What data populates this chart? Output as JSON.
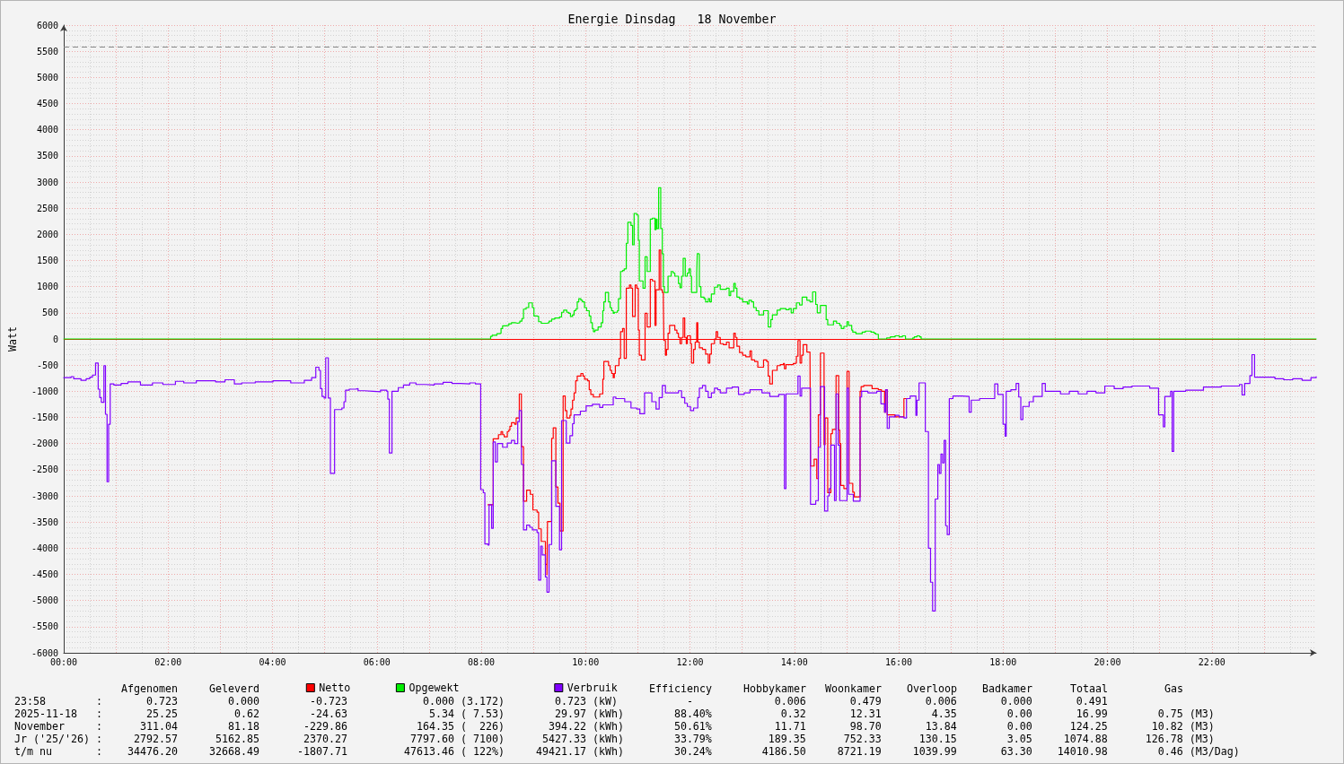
{
  "chart_data": {
    "type": "step",
    "title": "Energie Dinsdag   18 November",
    "ylabel": "Watt",
    "xlim": [
      0,
      24
    ],
    "xticks": [
      {
        "value": 0,
        "label": "00:00"
      },
      {
        "value": 1,
        "label": null
      },
      {
        "value": 2,
        "label": "02:00"
      },
      {
        "value": 3,
        "label": null
      },
      {
        "value": 4,
        "label": "04:00"
      },
      {
        "value": 5,
        "label": null
      },
      {
        "value": 6,
        "label": "06:00"
      },
      {
        "value": 7,
        "label": null
      },
      {
        "value": 8,
        "label": "08:00"
      },
      {
        "value": 9,
        "label": null
      },
      {
        "value": 10,
        "label": "10:00"
      },
      {
        "value": 11,
        "label": null
      },
      {
        "value": 12,
        "label": "12:00"
      },
      {
        "value": 13,
        "label": null
      },
      {
        "value": 14,
        "label": "14:00"
      },
      {
        "value": 15,
        "label": null
      },
      {
        "value": 16,
        "label": "16:00"
      },
      {
        "value": 17,
        "label": null
      },
      {
        "value": 18,
        "label": "18:00"
      },
      {
        "value": 19,
        "label": null
      },
      {
        "value": 20,
        "label": "20:00"
      },
      {
        "value": 21,
        "label": null
      },
      {
        "value": 22,
        "label": "22:00"
      },
      {
        "value": 23,
        "label": null
      }
    ],
    "ylim": [
      -6000,
      6000
    ],
    "yticks": [
      -6000,
      -5500,
      -5000,
      -4500,
      -4000,
      -3500,
      -3000,
      -2500,
      -2000,
      -1500,
      -1000,
      -500,
      0,
      500,
      1000,
      1500,
      2000,
      2500,
      3000,
      3500,
      4000,
      4500,
      5000,
      5500,
      6000
    ],
    "grid": true,
    "legend": "bottom",
    "marker": "none",
    "series": [
      {
        "name": "Netto",
        "color": "#ff0000",
        "x": [
          8.13,
          8.23,
          8.33,
          8.38,
          8.41,
          8.44,
          8.5,
          8.53,
          8.55,
          8.58,
          8.64,
          8.67,
          8.73,
          8.77,
          8.81,
          8.87,
          8.94,
          8.99,
          9.07,
          9.1,
          9.15,
          9.23,
          9.26,
          9.27,
          9.35,
          9.38,
          9.43,
          9.47,
          9.51,
          9.57,
          9.61,
          9.64,
          9.7,
          9.72,
          9.75,
          9.78,
          9.81,
          9.84,
          9.91,
          9.95,
          9.98,
          10.04,
          10.07,
          10.1,
          10.15,
          10.27,
          10.33,
          10.35,
          10.44,
          10.47,
          10.5,
          10.53,
          10.55,
          10.57,
          10.64,
          10.67,
          10.71,
          10.74,
          10.78,
          10.84,
          10.87,
          10.9,
          10.95,
          10.98,
          11.01,
          11.03,
          11.07,
          11.14,
          11.18,
          11.24,
          11.28,
          11.33,
          11.35,
          11.41,
          11.44,
          11.47,
          11.49,
          11.5,
          11.53,
          11.55,
          11.58,
          11.61,
          11.71,
          11.75,
          11.78,
          11.81,
          11.84,
          11.87,
          11.9,
          11.93,
          11.95,
          12.01,
          12.03,
          12.07,
          12.1,
          12.13,
          12.15,
          12.18,
          12.24,
          12.3,
          12.35,
          12.38,
          12.41,
          12.47,
          12.5,
          12.53,
          12.58,
          12.64,
          12.7,
          12.75,
          12.84,
          12.87,
          12.9,
          12.95,
          13.01,
          13.07,
          13.15,
          13.18,
          13.24,
          13.3,
          13.41,
          13.47,
          13.5,
          13.53,
          13.58,
          13.67,
          13.73,
          13.79,
          13.81,
          13.84,
          13.98,
          14.01,
          14.04,
          14.07,
          14.11,
          14.14,
          14.17,
          14.24,
          14.3,
          14.31,
          14.38,
          14.43,
          14.46,
          14.5,
          14.57,
          14.59,
          14.64,
          14.7,
          14.73,
          14.8,
          14.85,
          14.87,
          14.89,
          14.95,
          15.01,
          15.05,
          15.12,
          15.15,
          15.26,
          15.28,
          15.33,
          15.49,
          15.61,
          15.67,
          15.73,
          15.75,
          15.78,
          15.93,
          16.1,
          16.15
        ],
        "values": [
          -3170,
          -1910,
          -1830,
          -1770,
          -1830,
          -1870,
          -1770,
          -1740,
          -1670,
          -1600,
          -1630,
          -1510,
          -1050,
          -2060,
          -3100,
          -2890,
          -2970,
          -3270,
          -3310,
          -3630,
          -3870,
          -4310,
          -4510,
          -3490,
          -1900,
          -1700,
          -2830,
          -3140,
          -3670,
          -1090,
          -1370,
          -1510,
          -1460,
          -1340,
          -1170,
          -1030,
          -800,
          -710,
          -660,
          -710,
          -770,
          -800,
          -970,
          -1060,
          -1110,
          -1050,
          -770,
          -430,
          -510,
          -600,
          -660,
          -740,
          -660,
          -510,
          -370,
          140,
          200,
          -370,
          970,
          1030,
          970,
          430,
          1030,
          970,
          170,
          -310,
          -400,
          490,
          230,
          1140,
          1110,
          260,
          940,
          1700,
          940,
          890,
          740,
          -30,
          -310,
          -200,
          110,
          260,
          170,
          110,
          30,
          -90,
          30,
          400,
          30,
          -90,
          60,
          -90,
          -460,
          -200,
          -60,
          310,
          -60,
          -170,
          -200,
          -290,
          -460,
          -290,
          -90,
          0,
          140,
          30,
          -90,
          -110,
          -60,
          -170,
          110,
          30,
          -140,
          -260,
          -310,
          -340,
          -230,
          -400,
          -430,
          -540,
          -400,
          -430,
          -710,
          -860,
          -600,
          -510,
          -490,
          -470,
          -570,
          -490,
          -470,
          -460,
          -330,
          -30,
          -460,
          -310,
          -110,
          -250,
          -270,
          -2430,
          -2300,
          -2670,
          -1450,
          -270,
          -2020,
          -1510,
          -2940,
          -1810,
          -1730,
          -700,
          -1740,
          -2000,
          -2800,
          -2860,
          -620,
          -2760,
          -2930,
          -3020,
          -1000,
          -910,
          -890,
          -950,
          -970,
          -1000,
          -1400,
          -970,
          -1450,
          -1490,
          -1140,
          -1140
        ]
      },
      {
        "name": "Opgewekt",
        "color": "#00ee00",
        "x": [
          0,
          8.18,
          8.21,
          8.3,
          8.35,
          8.38,
          8.41,
          8.47,
          8.53,
          8.58,
          8.65,
          8.7,
          8.74,
          8.78,
          8.81,
          8.86,
          8.91,
          8.98,
          9.01,
          9.07,
          9.1,
          9.15,
          9.26,
          9.3,
          9.35,
          9.41,
          9.5,
          9.54,
          9.58,
          9.64,
          9.68,
          9.71,
          9.75,
          9.78,
          9.81,
          9.84,
          9.87,
          9.91,
          9.94,
          9.98,
          10.02,
          10.07,
          10.1,
          10.13,
          10.15,
          10.18,
          10.24,
          10.3,
          10.33,
          10.35,
          10.38,
          10.44,
          10.47,
          10.5,
          10.53,
          10.55,
          10.61,
          10.63,
          10.67,
          10.71,
          10.74,
          10.78,
          10.81,
          10.87,
          10.9,
          10.93,
          10.98,
          11.01,
          11.03,
          11.1,
          11.14,
          11.18,
          11.24,
          11.28,
          11.33,
          11.35,
          11.37,
          11.4,
          11.44,
          11.47,
          11.49,
          11.51,
          11.58,
          11.64,
          11.68,
          11.71,
          11.78,
          11.81,
          11.84,
          11.87,
          11.91,
          11.95,
          11.98,
          12.01,
          12.03,
          12.13,
          12.14,
          12.17,
          12.18,
          12.21,
          12.27,
          12.3,
          12.35,
          12.38,
          12.41,
          12.47,
          12.53,
          12.58,
          12.7,
          12.75,
          12.78,
          12.84,
          12.87,
          12.9,
          12.95,
          13.01,
          13.1,
          13.13,
          13.18,
          13.22,
          13.27,
          13.32,
          13.41,
          13.5,
          13.55,
          13.58,
          13.67,
          13.73,
          13.84,
          13.9,
          13.94,
          13.98,
          14.04,
          14.1,
          14.15,
          14.24,
          14.3,
          14.35,
          14.41,
          14.44,
          14.5,
          14.61,
          14.64,
          14.75,
          14.81,
          14.87,
          14.9,
          14.95,
          15.01,
          15.04,
          15.1,
          15.12,
          15.18,
          15.3,
          15.36,
          15.47,
          15.53,
          15.56,
          15.61,
          15.77,
          15.84,
          15.93,
          16.01,
          16.07,
          16.13,
          16.27,
          16.3,
          16.35,
          16.4,
          16.43,
          24
        ],
        "values": [
          0,
          50,
          70,
          100,
          110,
          200,
          250,
          260,
          290,
          310,
          300,
          310,
          340,
          390,
          570,
          600,
          690,
          600,
          440,
          430,
          330,
          300,
          310,
          340,
          380,
          400,
          420,
          510,
          550,
          510,
          490,
          430,
          460,
          540,
          570,
          710,
          770,
          740,
          710,
          600,
          540,
          440,
          310,
          200,
          140,
          170,
          230,
          310,
          540,
          710,
          890,
          710,
          600,
          540,
          490,
          510,
          540,
          770,
          1290,
          1310,
          1340,
          1830,
          2230,
          2170,
          1800,
          2400,
          2370,
          1890,
          1110,
          970,
          1570,
          1290,
          2290,
          2310,
          2090,
          2290,
          2110,
          2890,
          2110,
          1630,
          1000,
          890,
          1200,
          1290,
          1260,
          1200,
          1060,
          980,
          1200,
          1540,
          1200,
          1260,
          1340,
          1200,
          890,
          1260,
          1630,
          1620,
          1000,
          800,
          770,
          710,
          770,
          710,
          860,
          990,
          1030,
          950,
          970,
          830,
          910,
          1060,
          970,
          800,
          770,
          710,
          670,
          740,
          710,
          600,
          540,
          460,
          540,
          230,
          370,
          460,
          550,
          580,
          560,
          580,
          500,
          580,
          690,
          650,
          800,
          740,
          710,
          900,
          660,
          500,
          640,
          370,
          270,
          340,
          300,
          260,
          200,
          240,
          330,
          260,
          170,
          130,
          100,
          130,
          150,
          130,
          110,
          90,
          0,
          20,
          40,
          60,
          40,
          60,
          0,
          20,
          40,
          60,
          40,
          0,
          0
        ]
      },
      {
        "name": "Verbruik",
        "color": "#8000ff",
        "x": [
          0,
          0.14,
          0.19,
          0.33,
          0.43,
          0.5,
          0.55,
          0.61,
          0.66,
          0.69,
          0.72,
          0.77,
          0.8,
          0.83,
          0.86,
          0.89,
          0.96,
          1.1,
          1.23,
          1.47,
          1.7,
          1.9,
          2.14,
          2.3,
          2.54,
          2.91,
          3.09,
          3.27,
          3.41,
          3.67,
          4.01,
          4.35,
          4.61,
          4.75,
          4.83,
          4.89,
          4.92,
          4.95,
          4.99,
          5.02,
          5.07,
          5.11,
          5.19,
          5.33,
          5.37,
          5.4,
          5.47,
          5.59,
          5.64,
          5.76,
          5.93,
          6.07,
          6.19,
          6.21,
          6.24,
          6.29,
          6.41,
          6.51,
          6.63,
          6.75,
          6.93,
          7.1,
          7.27,
          7.44,
          7.61,
          7.78,
          7.89,
          7.99,
          8.04,
          8.07,
          8.13,
          8.15,
          8.2,
          8.23,
          8.27,
          8.31,
          8.41,
          8.5,
          8.58,
          8.64,
          8.7,
          8.73,
          8.77,
          8.81,
          8.87,
          8.93,
          8.98,
          9.07,
          9.1,
          9.14,
          9.17,
          9.23,
          9.26,
          9.3,
          9.35,
          9.43,
          9.5,
          9.54,
          9.63,
          9.7,
          9.75,
          9.78,
          9.9,
          10.01,
          10.13,
          10.27,
          10.33,
          10.53,
          10.58,
          10.75,
          10.87,
          10.98,
          11.04,
          11.13,
          11.27,
          11.35,
          11.41,
          11.47,
          11.53,
          11.78,
          11.84,
          11.9,
          11.95,
          12.01,
          12.07,
          12.15,
          12.18,
          12.24,
          12.3,
          12.35,
          12.41,
          12.47,
          12.53,
          12.58,
          12.7,
          12.81,
          12.93,
          13.04,
          13.15,
          13.27,
          13.38,
          13.53,
          13.7,
          13.81,
          13.84,
          14.07,
          14.11,
          14.14,
          14.31,
          14.41,
          14.46,
          14.5,
          14.58,
          14.64,
          14.67,
          14.7,
          14.77,
          14.8,
          14.84,
          14.87,
          15.01,
          15.04,
          15.13,
          15.26,
          15.29,
          15.41,
          15.58,
          15.66,
          15.73,
          15.75,
          15.78,
          15.82,
          15.93,
          16.01,
          16.1,
          16.15,
          16.22,
          16.33,
          16.35,
          16.39,
          16.51,
          16.57,
          16.61,
          16.65,
          16.7,
          16.75,
          16.78,
          16.81,
          16.84,
          16.87,
          16.9,
          16.93,
          16.97,
          17.04,
          17.21,
          17.35,
          17.39,
          17.55,
          17.84,
          17.9,
          18,
          18.04,
          18.06,
          18.15,
          18.25,
          18.3,
          18.34,
          18.38,
          18.5,
          18.58,
          18.75,
          18.81,
          19.01,
          19.1,
          19.27,
          19.44,
          19.61,
          19.78,
          19.95,
          20.13,
          20.3,
          20.47,
          20.81,
          20.98,
          21.07,
          21.1,
          21.21,
          21.24,
          21.27,
          21.5,
          21.84,
          22.18,
          22.53,
          22.58,
          22.63,
          22.73,
          22.77,
          22.82,
          23.04,
          23.21,
          23.38,
          23.55,
          23.73,
          23.9,
          24
        ],
        "values": [
          -740,
          -720,
          -760,
          -790,
          -760,
          -730,
          -690,
          -460,
          -960,
          -1120,
          -1210,
          -510,
          -1440,
          -2730,
          -1630,
          -860,
          -880,
          -850,
          -820,
          -880,
          -840,
          -870,
          -810,
          -840,
          -800,
          -820,
          -780,
          -860,
          -840,
          -820,
          -800,
          -840,
          -790,
          -740,
          -540,
          -600,
          -950,
          -1100,
          -1130,
          -360,
          -1130,
          -2570,
          -1350,
          -1320,
          -1200,
          -980,
          -960,
          -950,
          -990,
          -1000,
          -1010,
          -980,
          -1000,
          -1150,
          -2180,
          -1000,
          -930,
          -880,
          -840,
          -870,
          -880,
          -860,
          -830,
          -850,
          -860,
          -840,
          -860,
          -2880,
          -2940,
          -3920,
          -3940,
          -3170,
          -3620,
          -1970,
          -2350,
          -2000,
          -2070,
          -1990,
          -1940,
          -2000,
          -1580,
          -1370,
          -2400,
          -3650,
          -3560,
          -3600,
          -3650,
          -3700,
          -4610,
          -3960,
          -4130,
          -4550,
          -4840,
          -3930,
          -2330,
          -3200,
          -4030,
          -1560,
          -1990,
          -1850,
          -1620,
          -1450,
          -1380,
          -1280,
          -1250,
          -1310,
          -1260,
          -1110,
          -1140,
          -1200,
          -1320,
          -1340,
          -1430,
          -1030,
          -1200,
          -1340,
          -1120,
          -890,
          -1030,
          -990,
          -1120,
          -1230,
          -1290,
          -1370,
          -1320,
          -1120,
          -940,
          -890,
          -1000,
          -1120,
          -1030,
          -940,
          -970,
          -1030,
          -940,
          -920,
          -1060,
          -1030,
          -970,
          -970,
          -1030,
          -1100,
          -1060,
          -2860,
          -1050,
          -710,
          -1090,
          -940,
          -3160,
          -3090,
          -2070,
          -910,
          -3290,
          -3000,
          -2860,
          -2030,
          -3090,
          -1050,
          -2030,
          -3090,
          -940,
          -2970,
          -3100,
          -1110,
          -1000,
          -1030,
          -1000,
          -1240,
          -1400,
          -970,
          -1710,
          -1490,
          -1460,
          -1490,
          -1510,
          -1140,
          -1090,
          -1460,
          -1170,
          -840,
          -1770,
          -4000,
          -4650,
          -5200,
          -3060,
          -2400,
          -2570,
          -2200,
          -2370,
          -1940,
          -3570,
          -3740,
          -1140,
          -1090,
          -1100,
          -1400,
          -1170,
          -1140,
          -860,
          -1060,
          -1630,
          -1860,
          -1000,
          -970,
          -850,
          -1110,
          -1540,
          -1290,
          -1200,
          -1100,
          -850,
          -1000,
          -1000,
          -1050,
          -1000,
          -1050,
          -1000,
          -1030,
          -900,
          -950,
          -920,
          -900,
          -940,
          -1450,
          -1680,
          -1100,
          -1000,
          -2150,
          -1000,
          -980,
          -920,
          -900,
          -870,
          -1070,
          -850,
          -700,
          -300,
          -730,
          -730,
          -760,
          -780,
          -760,
          -790,
          -740,
          -720
        ]
      }
    ],
    "ref_lines": [
      {
        "axis": "y",
        "value": 0,
        "color": "#ff0000"
      },
      {
        "axis": "y",
        "value": 5585,
        "color": "#888888",
        "line_style": "dashed"
      }
    ],
    "annotations": [
      "Afgenomen     Geleverd",
      "Efficiency     Hobbykamer   Woonkamer    Overloop    Badkamer      Totaal         Gas",
      "23:58        :       0.723        0.000        -0.723            0.000 (3.172)        0.723 (kW)           -             0.006       0.479       0.006       0.000       0.491",
      "2025-11-18   :       25.25         0.62        -24.63             5.34 ( 7.53)        29.97 (kWh)        88.40%           0.32       12.31        4.35        0.00       16.99        0.75 (M3)",
      "November     :      311.04        81.18       -229.86           164.35 (  226)       394.22 (kWh)        50.61%          11.71       98.70       13.84        0.00      124.25       10.82 (M3)",
      "Jr ('25/'26) :     2792.57      5162.85       2370.27          7797.60 ( 7100)      5427.33 (kWh)        33.79%         189.35      752.33      130.15        3.05     1074.88      126.78 (M3)",
      "t/m nu       :    34476.20     32668.49      -1807.71         47613.46 ( 122%)     49421.17 (kWh)        30.24%        4186.50     8721.19     1039.99       63.30    14010.98        0.46 (M3/Dag)"
    ]
  }
}
